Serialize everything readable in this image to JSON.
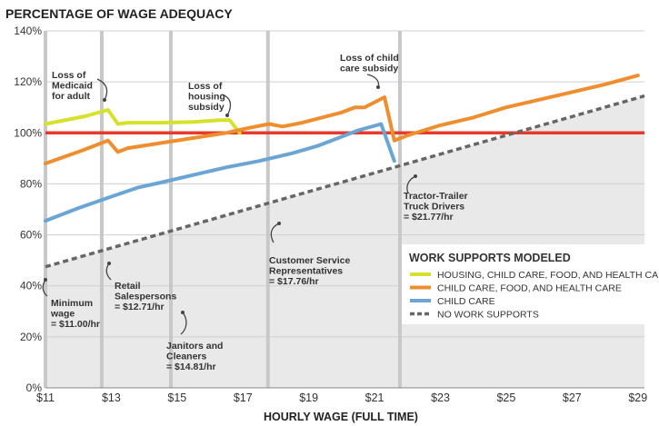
{
  "chart_data": {
    "type": "line",
    "title": "PERCENTAGE OF WAGE ADEQUACY",
    "xlabel": "HOURLY WAGE (FULL TIME)",
    "ylabel": "",
    "xlim": [
      11,
      29.2
    ],
    "ylim": [
      0,
      140
    ],
    "x_ticks": [
      11,
      13,
      15,
      17,
      19,
      21,
      23,
      25,
      27,
      29
    ],
    "x_tick_labels": [
      "$11",
      "$13",
      "$15",
      "$17",
      "$19",
      "$21",
      "$23",
      "$25",
      "$27",
      "$29"
    ],
    "y_ticks": [
      0,
      20,
      40,
      60,
      80,
      100,
      120,
      140
    ],
    "y_tick_labels": [
      "0%",
      "20%",
      "40%",
      "60%",
      "80%",
      "100%",
      "120%",
      "140%"
    ],
    "grid": "horizontal",
    "reference_line": {
      "y": 100,
      "color": "#e8392a"
    },
    "vertical_markers": [
      11.0,
      12.71,
      14.81,
      17.76,
      21.77
    ],
    "legend": {
      "title": "WORK SUPPORTS MODELED",
      "position": "bottom-right"
    },
    "series": [
      {
        "name": "HOUSING, CHILD CARE, FOOD, AND HEALTH CARE",
        "color": "#d8e12a",
        "style": "solid",
        "points": [
          [
            11,
            103.5
          ],
          [
            12.2,
            106.5
          ],
          [
            12.9,
            109
          ],
          [
            13.2,
            103.5
          ],
          [
            13.5,
            104
          ],
          [
            14.5,
            104
          ],
          [
            15.5,
            104.3
          ],
          [
            16.3,
            105
          ],
          [
            16.6,
            105
          ],
          [
            16.9,
            100
          ]
        ]
      },
      {
        "name": "CHILD CARE, FOOD, AND HEALTH CARE",
        "color": "#ef8e2e",
        "style": "solid",
        "points": [
          [
            11,
            88
          ],
          [
            12.1,
            93
          ],
          [
            12.9,
            97
          ],
          [
            13.2,
            92.5
          ],
          [
            13.5,
            94
          ],
          [
            14.5,
            96
          ],
          [
            15.5,
            98
          ],
          [
            16.5,
            100
          ],
          [
            17.2,
            102
          ],
          [
            17.8,
            103.5
          ],
          [
            18.2,
            102.5
          ],
          [
            18.8,
            104
          ],
          [
            19.4,
            106
          ],
          [
            20.0,
            108
          ],
          [
            20.4,
            110
          ],
          [
            20.7,
            110
          ],
          [
            21.0,
            112
          ],
          [
            21.3,
            114
          ],
          [
            21.6,
            97
          ],
          [
            22.0,
            99
          ],
          [
            23.0,
            103
          ],
          [
            24.0,
            106
          ],
          [
            25.0,
            110
          ],
          [
            26.0,
            113
          ],
          [
            27.0,
            116
          ],
          [
            28.0,
            119
          ],
          [
            29.0,
            122.5
          ]
        ]
      },
      {
        "name": "CHILD CARE",
        "color": "#6ba5d3",
        "style": "solid",
        "points": [
          [
            11,
            65.5
          ],
          [
            12.0,
            70.5
          ],
          [
            13.0,
            75
          ],
          [
            13.8,
            78.5
          ],
          [
            14.5,
            80.5
          ],
          [
            15.5,
            83.5
          ],
          [
            16.5,
            86.5
          ],
          [
            17.5,
            89
          ],
          [
            18.5,
            92
          ],
          [
            19.3,
            95
          ],
          [
            19.9,
            98
          ],
          [
            20.5,
            101
          ],
          [
            21.2,
            103.5
          ],
          [
            21.6,
            89
          ]
        ]
      },
      {
        "name": "NO WORK SUPPORTS",
        "color": "#666666",
        "style": "dashed",
        "points": [
          [
            11,
            47.5
          ],
          [
            29.2,
            114.5
          ]
        ]
      }
    ],
    "annotations": [
      {
        "text": [
          "Loss of",
          "Medicaid",
          "for adult"
        ]
      },
      {
        "text": [
          "Loss of",
          "housing",
          "subsidy"
        ]
      },
      {
        "text": [
          "Loss of child",
          "care subsidy"
        ]
      },
      {
        "text": [
          "Tractor-Trailer",
          "Truck Drivers",
          "= $21.77/hr"
        ]
      },
      {
        "text": [
          "Customer Service",
          "Representatives",
          "= $17.76/hr"
        ]
      },
      {
        "text": [
          "Retail",
          "Salespersons",
          "= $12.71/hr"
        ]
      },
      {
        "text": [
          "Minimum",
          "wage",
          "= $11.00/hr"
        ]
      },
      {
        "text": [
          "Janitors and",
          "Cleaners",
          "= $14.81/hr"
        ]
      }
    ]
  }
}
